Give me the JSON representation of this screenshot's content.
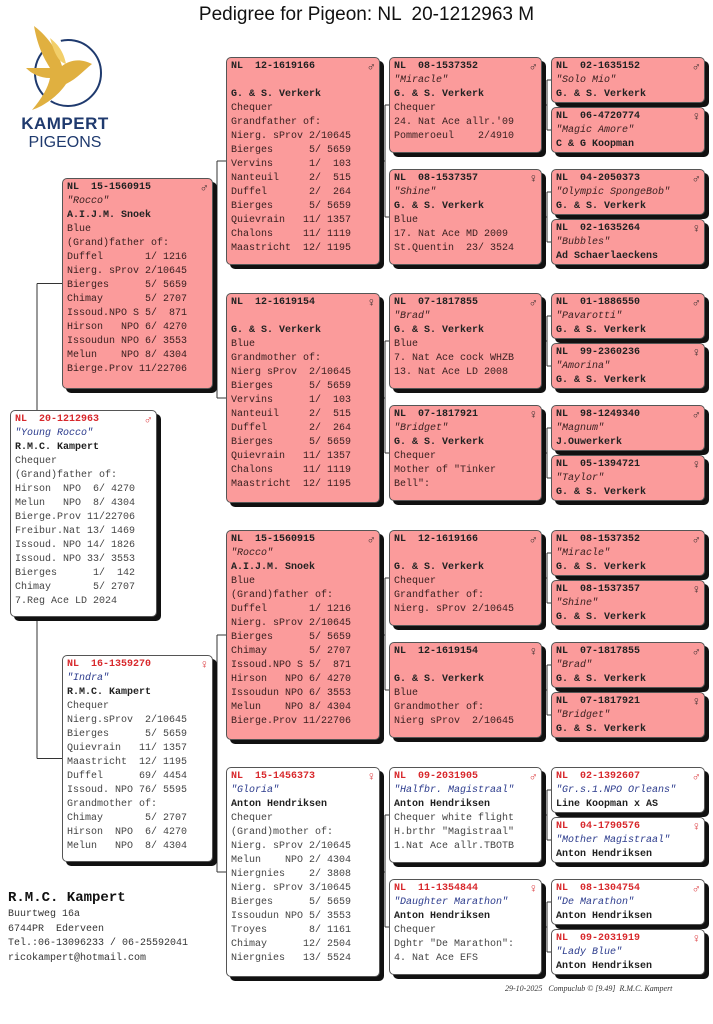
{
  "title": "Pedigree for Pigeon: NL  20-1212963 M",
  "logo": {
    "line1": "KAMPERT",
    "line2": "PIGEONS",
    "gold": "#e0b040",
    "navy": "#1f3a6e"
  },
  "colors": {
    "pink_card": "#fb9b9b",
    "white_card": "#ffffff",
    "ring_red": "#d8282c",
    "name_blue": "#2a3a8c"
  },
  "owner": {
    "name": "R.M.C. Kampert",
    "street": "Buurtweg 16a",
    "city": "6744PR  Ederveen",
    "phone": "Tel.:06-13096233 / 06-25592041",
    "email": "ricokampert@hotmail.com"
  },
  "footer": "29-10-2025   Compuclub © [9.49]  R.M.C. Kampert",
  "cards": [
    {
      "pos": 1,
      "style": "white",
      "ring": "NL  20-1212963",
      "sex": "male",
      "name": "\"Young Rocco\"",
      "owner": "R.M.C. Kampert",
      "lines": [
        "Chequer",
        "(Grand)father of:",
        "Hirson  NPO  6/ 4270",
        "Melun   NPO  8/ 4304",
        "Bierge.Prov 11/22706",
        "Freibur.Nat 13/ 1469",
        "Issoud. NPO 14/ 1826",
        "Issoud. NPO 33/ 3553",
        "Bierges      1/  142",
        "Chimay       5/ 2707",
        "7.Reg Ace LD 2024"
      ]
    },
    {
      "pos": 2,
      "style": "pink",
      "ring": "NL  15-1560915",
      "sex": "male",
      "name": "\"Rocco\"",
      "owner": "A.I.J.M. Snoek",
      "lines": [
        "Blue",
        "(Grand)father of:",
        "Duffel       1/ 1216",
        "Nierg. sProv 2/10645",
        "Bierges      5/ 5659",
        "Chimay       5/ 2707",
        "Issoud.NPO S 5/  871",
        "Hirson   NPO 6/ 4270",
        "Issoudun NPO 6/ 3553",
        "Melun    NPO 8/ 4304",
        "Bierge.Prov 11/22706"
      ]
    },
    {
      "pos": 3,
      "style": "white",
      "ring": "NL  16-1359270",
      "sex": "female",
      "name": "\"Indra\"",
      "owner": "R.M.C. Kampert",
      "lines": [
        "Chequer",
        "Nierg.sProv  2/10645",
        "Bierges      5/ 5659",
        "Quievrain   11/ 1357",
        "Maastricht  12/ 1195",
        "Duffel      69/ 4454",
        "Issoud. NPO 76/ 5595",
        "Grandmother of:",
        "Chimay       5/ 2707",
        "Hirson  NPO  6/ 4270",
        "Melun   NPO  8/ 4304"
      ]
    },
    {
      "pos": 4,
      "style": "pink",
      "ring": "NL  12-1619166",
      "sex": "male",
      "name": "",
      "owner": "G. & S. Verkerk",
      "lines": [
        "Chequer",
        "Grandfather of:",
        "Nierg. sProv 2/10645",
        "Bierges      5/ 5659",
        "Vervins      1/  103",
        "Nanteuil     2/  515",
        "Duffel       2/  264",
        "Bierges      5/ 5659",
        "Quievrain   11/ 1357",
        "Chalons     11/ 1119",
        "Maastricht  12/ 1195"
      ]
    },
    {
      "pos": 5,
      "style": "pink",
      "ring": "NL  12-1619154",
      "sex": "female",
      "name": "",
      "owner": "G. & S. Verkerk",
      "lines": [
        "Blue",
        "Grandmother of:",
        "Nierg sProv  2/10645",
        "Bierges      5/ 5659",
        "Vervins      1/  103",
        "Nanteuil     2/  515",
        "Duffel       2/  264",
        "Bierges      5/ 5659",
        "Quievrain   11/ 1357",
        "Chalons     11/ 1119",
        "Maastricht  12/ 1195"
      ]
    },
    {
      "pos": 6,
      "style": "pink",
      "ring": "NL  15-1560915",
      "sex": "male",
      "name": "\"Rocco\"",
      "owner": "A.I.J.M. Snoek",
      "lines": [
        "Blue",
        "(Grand)father of:",
        "Duffel       1/ 1216",
        "Nierg. sProv 2/10645",
        "Bierges      5/ 5659",
        "Chimay       5/ 2707",
        "Issoud.NPO S 5/  871",
        "Hirson   NPO 6/ 4270",
        "Issoudun NPO 6/ 3553",
        "Melun    NPO 8/ 4304",
        "Bierge.Prov 11/22706"
      ]
    },
    {
      "pos": 7,
      "style": "white",
      "ring": "NL  15-1456373",
      "sex": "female",
      "name": "\"Gloria\"",
      "owner": "Anton Hendriksen",
      "lines": [
        "Chequer",
        "(Grand)mother of:",
        "Nierg. sProv 2/10645",
        "Melun    NPO 2/ 4304",
        "Niergnies    2/ 3808",
        "Nierg. sProv 3/10645",
        "Bierges      5/ 5659",
        "Issoudun NPO 5/ 3553",
        "Troyes       8/ 1161",
        "Chimay      12/ 2504",
        "Niergnies   13/ 5524"
      ]
    },
    {
      "pos": 8,
      "style": "pink",
      "ring": "NL  08-1537352",
      "sex": "male",
      "name": "\"Miracle\"",
      "owner": "G. & S. Verkerk",
      "lines": [
        "Chequer",
        "24. Nat Ace allr.'09",
        "Pommeroeul    2/4910"
      ]
    },
    {
      "pos": 9,
      "style": "pink",
      "ring": "NL  08-1537357",
      "sex": "female",
      "name": "\"Shine\"",
      "owner": "G. & S. Verkerk",
      "lines": [
        "Blue",
        "17. Nat Ace MD 2009",
        "St.Quentin  23/ 3524"
      ]
    },
    {
      "pos": 10,
      "style": "pink",
      "ring": "NL  07-1817855",
      "sex": "male",
      "name": "\"Brad\"",
      "owner": "G. & S. Verkerk",
      "lines": [
        "Blue",
        "7. Nat Ace cock WHZB",
        "13. Nat Ace LD 2008"
      ]
    },
    {
      "pos": 11,
      "style": "pink",
      "ring": "NL  07-1817921",
      "sex": "female",
      "name": "\"Bridget\"",
      "owner": "G. & S. Verkerk",
      "lines": [
        "Chequer",
        "Mother of \"Tinker",
        "Bell\":"
      ]
    },
    {
      "pos": 12,
      "style": "pink",
      "ring": "NL  12-1619166",
      "sex": "male",
      "name": "",
      "owner": "G. & S. Verkerk",
      "lines": [
        "Chequer",
        "Grandfather of:",
        "Nierg. sProv 2/10645"
      ]
    },
    {
      "pos": 13,
      "style": "pink",
      "ring": "NL  12-1619154",
      "sex": "female",
      "name": "",
      "owner": "G. & S. Verkerk",
      "lines": [
        "Blue",
        "Grandmother of:",
        "Nierg sProv  2/10645"
      ]
    },
    {
      "pos": 14,
      "style": "white",
      "ring": "NL  09-2031905",
      "sex": "male",
      "name": "\"Halfbr. Magistraal\"",
      "owner": "Anton Hendriksen",
      "lines": [
        "Chequer white flight",
        "H.brthr \"Magistraal\"",
        "1.Nat Ace allr.TBOTB"
      ]
    },
    {
      "pos": 15,
      "style": "white",
      "ring": "NL  11-1354844",
      "sex": "female",
      "name": "\"Daughter Marathon\"",
      "owner": "Anton Hendriksen",
      "lines": [
        "Chequer",
        "Dghtr \"De Marathon\":",
        "4. Nat Ace EFS"
      ]
    },
    {
      "pos": 16,
      "style": "pink",
      "ring": "NL  02-1635152",
      "sex": "male",
      "name": "\"Solo Mio\"",
      "owner": "G. & S. Verkerk",
      "lines": []
    },
    {
      "pos": 17,
      "style": "pink",
      "ring": "NL  06-4720774",
      "sex": "female",
      "name": "\"Magic Amore\"",
      "owner": "C & G Koopman",
      "lines": []
    },
    {
      "pos": 18,
      "style": "pink",
      "ring": "NL  04-2050373",
      "sex": "male",
      "name": "\"Olympic SpongeBob\"",
      "owner": "G. & S. Verkerk",
      "lines": []
    },
    {
      "pos": 19,
      "style": "pink",
      "ring": "NL  02-1635264",
      "sex": "female",
      "name": "\"Bubbles\"",
      "owner": "Ad Schaerlaeckens",
      "lines": []
    },
    {
      "pos": 20,
      "style": "pink",
      "ring": "NL  01-1886550",
      "sex": "male",
      "name": "\"Pavarotti\"",
      "owner": "G. & S. Verkerk",
      "lines": []
    },
    {
      "pos": 21,
      "style": "pink",
      "ring": "NL  99-2360236",
      "sex": "female",
      "name": "\"Amorina\"",
      "owner": "G. & S. Verkerk",
      "lines": []
    },
    {
      "pos": 22,
      "style": "pink",
      "ring": "NL  98-1249340",
      "sex": "male",
      "name": "\"Magnum\"",
      "owner": "J.Ouwerkerk",
      "lines": []
    },
    {
      "pos": 23,
      "style": "pink",
      "ring": "NL  05-1394721",
      "sex": "female",
      "name": "\"Taylor\"",
      "owner": "G. & S. Verkerk",
      "lines": []
    },
    {
      "pos": 24,
      "style": "pink",
      "ring": "NL  08-1537352",
      "sex": "male",
      "name": "\"Miracle\"",
      "owner": "G. & S. Verkerk",
      "lines": []
    },
    {
      "pos": 25,
      "style": "pink",
      "ring": "NL  08-1537357",
      "sex": "female",
      "name": "\"Shine\"",
      "owner": "G. & S. Verkerk",
      "lines": []
    },
    {
      "pos": 26,
      "style": "pink",
      "ring": "NL  07-1817855",
      "sex": "male",
      "name": "\"Brad\"",
      "owner": "G. & S. Verkerk",
      "lines": []
    },
    {
      "pos": 27,
      "style": "pink",
      "ring": "NL  07-1817921",
      "sex": "female",
      "name": "\"Bridget\"",
      "owner": "G. & S. Verkerk",
      "lines": []
    },
    {
      "pos": 28,
      "style": "white",
      "ring": "NL  02-1392607",
      "sex": "male",
      "name": "\"Gr.s.1.NPO Orleans\"",
      "owner": "Line Koopman x AS",
      "lines": []
    },
    {
      "pos": 29,
      "style": "white",
      "ring": "NL  04-1790576",
      "sex": "female",
      "name": "\"Mother Magistraal\"",
      "owner": "Anton Hendriksen",
      "lines": []
    },
    {
      "pos": 30,
      "style": "white",
      "ring": "NL  08-1304754",
      "sex": "male",
      "name": "\"De Marathon\"",
      "owner": "Anton Hendriksen",
      "lines": []
    },
    {
      "pos": 31,
      "style": "white",
      "ring": "NL  09-2031919",
      "sex": "female",
      "name": "\"Lady Blue\"",
      "owner": "Anton Hendriksen",
      "lines": []
    }
  ]
}
